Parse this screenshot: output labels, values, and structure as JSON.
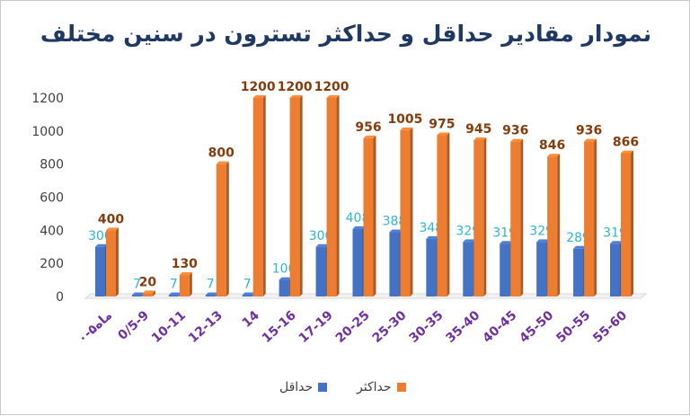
{
  "chart_data": {
    "type": "bar",
    "title": "نمودار مقادیر حداقل و حداکثر تسترون در سنین مختلف",
    "categories": [
      "۰-۵ماه",
      "0/5-9",
      "10-11",
      "12-13",
      "14",
      "15-16",
      "17-19",
      "20-25",
      "25-30",
      "30-35",
      "35-40",
      "40-45",
      "45-50",
      "50-55",
      "55-60"
    ],
    "series": [
      {
        "name": "حداقل",
        "color": "#4472c4",
        "label_color": "#2cb5d6",
        "values": [
          300,
          7,
          7,
          7,
          7,
          100,
          300,
          408,
          388,
          348,
          329,
          319,
          329,
          289,
          319
        ]
      },
      {
        "name": "حداکثر",
        "color": "#ed7d31",
        "label_color": "#843c0c",
        "values": [
          400,
          20,
          130,
          800,
          1200,
          1200,
          1200,
          956,
          1005,
          975,
          945,
          936,
          846,
          936,
          866
        ]
      }
    ],
    "ylim": [
      0,
      1200
    ],
    "yticks": [
      0,
      200,
      400,
      600,
      800,
      1000,
      1200
    ],
    "grid": false,
    "legend_position": "bottom"
  }
}
